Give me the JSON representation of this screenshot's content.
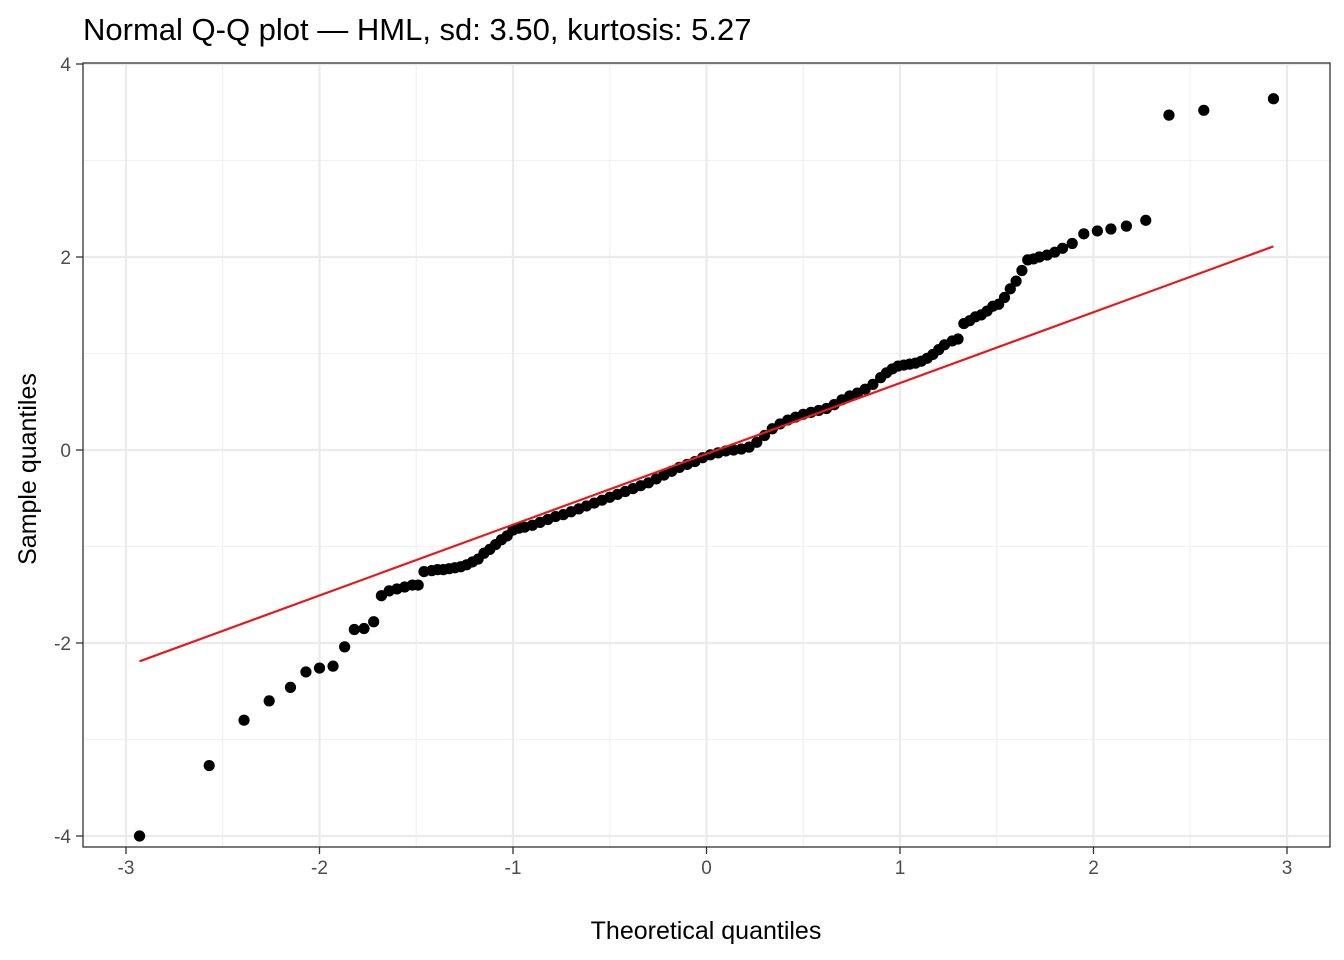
{
  "chart_data": {
    "type": "scatter",
    "title": "Normal Q-Q plot — HML, sd: 3.50, kurtosis: 5.27",
    "xlabel": "Theoretical quantiles",
    "ylabel": "Sample quantiles",
    "xlim": [
      -3.0,
      3.0
    ],
    "ylim": [
      -4.1,
      4.0
    ],
    "x_ticks": [
      -3,
      -2,
      -1,
      0,
      1,
      2,
      3
    ],
    "x_tick_labels": [
      "-3",
      "-2",
      "-1",
      "0",
      "1",
      "2",
      "3"
    ],
    "y_ticks": [
      -4,
      -2,
      0,
      2,
      4
    ],
    "y_tick_labels": [
      "-4",
      "-2",
      "0",
      "2",
      "4"
    ],
    "grid": true,
    "legend": "none",
    "point_color": "#000000",
    "line_color": "#e41a1c",
    "reference_line": {
      "x": [
        -2.93,
        2.93
      ],
      "y": [
        -2.19,
        2.11
      ]
    },
    "points": [
      [
        -2.93,
        -4.0
      ],
      [
        -2.57,
        -3.27
      ],
      [
        -2.39,
        -2.8
      ],
      [
        -2.26,
        -2.6
      ],
      [
        -2.15,
        -2.46
      ],
      [
        -2.07,
        -2.3
      ],
      [
        -2.0,
        -2.26
      ],
      [
        -1.93,
        -2.24
      ],
      [
        -1.87,
        -2.04
      ],
      [
        -1.82,
        -1.86
      ],
      [
        -1.77,
        -1.85
      ],
      [
        -1.72,
        -1.78
      ],
      [
        -1.68,
        -1.51
      ],
      [
        -1.64,
        -1.46
      ],
      [
        -1.6,
        -1.44
      ],
      [
        -1.56,
        -1.42
      ],
      [
        -1.52,
        -1.4
      ],
      [
        -1.49,
        -1.4
      ],
      [
        -1.46,
        -1.26
      ],
      [
        -1.42,
        -1.25
      ],
      [
        -1.39,
        -1.24
      ],
      [
        -1.36,
        -1.24
      ],
      [
        -1.33,
        -1.23
      ],
      [
        -1.3,
        -1.22
      ],
      [
        -1.27,
        -1.21
      ],
      [
        -1.24,
        -1.19
      ],
      [
        -1.21,
        -1.16
      ],
      [
        -1.18,
        -1.13
      ],
      [
        -1.15,
        -1.07
      ],
      [
        -1.12,
        -1.03
      ],
      [
        -1.09,
        -0.98
      ],
      [
        -1.06,
        -0.93
      ],
      [
        -1.03,
        -0.89
      ],
      [
        -1.0,
        -0.83
      ],
      [
        -0.97,
        -0.81
      ],
      [
        -0.94,
        -0.8
      ],
      [
        -0.9,
        -0.78
      ],
      [
        -0.86,
        -0.75
      ],
      [
        -0.82,
        -0.72
      ],
      [
        -0.78,
        -0.69
      ],
      [
        -0.74,
        -0.67
      ],
      [
        -0.7,
        -0.64
      ],
      [
        -0.66,
        -0.61
      ],
      [
        -0.62,
        -0.58
      ],
      [
        -0.58,
        -0.55
      ],
      [
        -0.54,
        -0.52
      ],
      [
        -0.5,
        -0.49
      ],
      [
        -0.46,
        -0.46
      ],
      [
        -0.42,
        -0.43
      ],
      [
        -0.38,
        -0.4
      ],
      [
        -0.34,
        -0.37
      ],
      [
        -0.3,
        -0.34
      ],
      [
        -0.26,
        -0.3
      ],
      [
        -0.22,
        -0.26
      ],
      [
        -0.18,
        -0.22
      ],
      [
        -0.14,
        -0.18
      ],
      [
        -0.1,
        -0.15
      ],
      [
        -0.06,
        -0.12
      ],
      [
        -0.02,
        -0.08
      ],
      [
        0.02,
        -0.05
      ],
      [
        0.06,
        -0.03
      ],
      [
        0.1,
        -0.01
      ],
      [
        0.14,
        0.0
      ],
      [
        0.18,
        0.01
      ],
      [
        0.22,
        0.03
      ],
      [
        0.26,
        0.08
      ],
      [
        0.3,
        0.15
      ],
      [
        0.34,
        0.22
      ],
      [
        0.38,
        0.27
      ],
      [
        0.42,
        0.31
      ],
      [
        0.46,
        0.34
      ],
      [
        0.5,
        0.37
      ],
      [
        0.54,
        0.39
      ],
      [
        0.58,
        0.41
      ],
      [
        0.62,
        0.43
      ],
      [
        0.66,
        0.47
      ],
      [
        0.7,
        0.52
      ],
      [
        0.74,
        0.56
      ],
      [
        0.78,
        0.59
      ],
      [
        0.82,
        0.63
      ],
      [
        0.86,
        0.68
      ],
      [
        0.9,
        0.75
      ],
      [
        0.93,
        0.8
      ],
      [
        0.96,
        0.84
      ],
      [
        0.99,
        0.87
      ],
      [
        1.02,
        0.88
      ],
      [
        1.05,
        0.89
      ],
      [
        1.08,
        0.9
      ],
      [
        1.11,
        0.92
      ],
      [
        1.14,
        0.95
      ],
      [
        1.17,
        0.99
      ],
      [
        1.2,
        1.04
      ],
      [
        1.23,
        1.09
      ],
      [
        1.27,
        1.13
      ],
      [
        1.3,
        1.15
      ],
      [
        1.33,
        1.31
      ],
      [
        1.36,
        1.34
      ],
      [
        1.39,
        1.38
      ],
      [
        1.42,
        1.4
      ],
      [
        1.45,
        1.44
      ],
      [
        1.48,
        1.49
      ],
      [
        1.51,
        1.51
      ],
      [
        1.54,
        1.58
      ],
      [
        1.57,
        1.67
      ],
      [
        1.6,
        1.75
      ],
      [
        1.63,
        1.86
      ],
      [
        1.66,
        1.97
      ],
      [
        1.69,
        1.98
      ],
      [
        1.72,
        2.0
      ],
      [
        1.76,
        2.02
      ],
      [
        1.8,
        2.05
      ],
      [
        1.84,
        2.09
      ],
      [
        1.89,
        2.14
      ],
      [
        1.95,
        2.24
      ],
      [
        2.02,
        2.27
      ],
      [
        2.09,
        2.29
      ],
      [
        2.17,
        2.32
      ],
      [
        2.27,
        2.38
      ],
      [
        2.39,
        3.47
      ],
      [
        2.57,
        3.52
      ],
      [
        2.93,
        3.64
      ]
    ]
  }
}
